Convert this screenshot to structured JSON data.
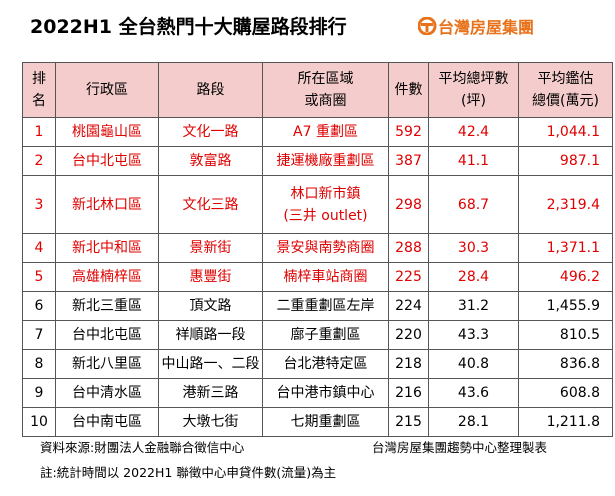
{
  "header": {
    "title": "2022H1 全台熱門十大購屋路段排行",
    "logo": "台灣房屋集團"
  },
  "table": {
    "columns": [
      [
        "排",
        "名"
      ],
      [
        "行政區"
      ],
      [
        "路段"
      ],
      [
        "所在區域",
        "或商圈"
      ],
      [
        "件數"
      ],
      [
        "平均總坪數",
        "(坪)"
      ],
      [
        "平均鑑估",
        "總價(萬元)"
      ]
    ],
    "rows": [
      [
        "1",
        "桃園龜山區",
        "文化一路",
        "A7 重劃區",
        "592",
        "42.4",
        "1,044.1"
      ],
      [
        "2",
        "台中北屯區",
        "敦富路",
        "捷運機廠重劃區",
        "387",
        "41.1",
        "987.1"
      ],
      [
        "3",
        "新北林口區",
        "文化三路",
        [
          "林口新市鎮",
          "(三井 outlet)"
        ],
        "298",
        "68.7",
        "2,319.4"
      ],
      [
        "4",
        "新北中和區",
        "景新街",
        "景安與南勢商圈",
        "288",
        "30.3",
        "1,371.1"
      ],
      [
        "5",
        "高雄楠梓區",
        "惠豐街",
        "楠梓車站商圈",
        "225",
        "28.4",
        "496.2"
      ],
      [
        "6",
        "新北三重區",
        "頂文路",
        "二重重劃區左岸",
        "224",
        "31.2",
        "1,455.9"
      ],
      [
        "7",
        "台中北屯區",
        "祥順路一段",
        "廍子重劃區",
        "220",
        "43.3",
        "810.5"
      ],
      [
        "8",
        "新北八里區",
        "中山路一、二段",
        "台北港特定區",
        "218",
        "40.8",
        "836.8"
      ],
      [
        "9",
        "台中清水區",
        "港新三路",
        "台中港市鎮中心",
        "216",
        "43.6",
        "608.8"
      ],
      [
        "10",
        "台中南屯區",
        "大墩七街",
        "七期重劃區",
        "215",
        "28.1",
        "1,211.8"
      ]
    ]
  },
  "footer": {
    "source": "資料來源:財團法人金融聯合徵信中心",
    "credit": "台灣房屋集團趨勢中心整理製表",
    "note": "註:統計時間以 2022H1 聯徵中心申貸件數(流量)為主"
  }
}
